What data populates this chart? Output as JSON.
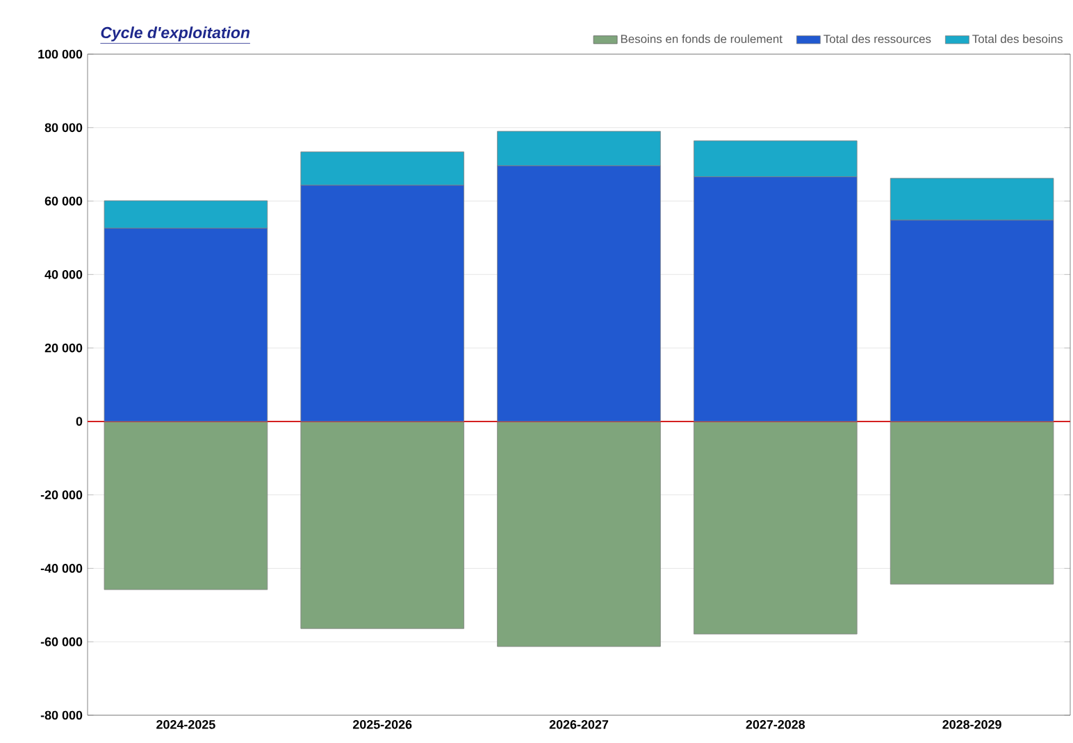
{
  "chart_data": {
    "type": "bar",
    "title": "Cycle d'exploitation",
    "stacked": true,
    "categories": [
      "2024-2025",
      "2025-2026",
      "2026-2027",
      "2027-2028",
      "2028-2029"
    ],
    "series": [
      {
        "name": "Besoins en fonds de roulement",
        "color": "#7fa57c",
        "values": [
          -45800,
          -56400,
          -61300,
          -57900,
          -44300
        ]
      },
      {
        "name": "Total des ressources",
        "color": "#2159d0",
        "values": [
          52600,
          64300,
          69600,
          66600,
          54800
        ]
      },
      {
        "name": "Total des besoins",
        "color": "#1ba9c9",
        "values": [
          7500,
          9100,
          9400,
          9800,
          11400
        ]
      }
    ],
    "ylim": [
      -80000,
      100000
    ],
    "yticks": [
      {
        "value": -80000,
        "label": "-80 000"
      },
      {
        "value": -60000,
        "label": "-60 000"
      },
      {
        "value": -40000,
        "label": "-40 000"
      },
      {
        "value": -20000,
        "label": "-20 000"
      },
      0,
      {
        "value": 20000,
        "label": "20 000"
      },
      {
        "value": 40000,
        "label": "40 000"
      },
      {
        "value": 60000,
        "label": "60 000"
      },
      {
        "value": 80000,
        "label": "80 000"
      },
      {
        "value": 100000,
        "label": "100 000"
      }
    ],
    "ref_lines": [
      {
        "axis": "y",
        "value": 0,
        "color": "#d42020"
      }
    ],
    "grid": "y",
    "legend": "top right"
  }
}
